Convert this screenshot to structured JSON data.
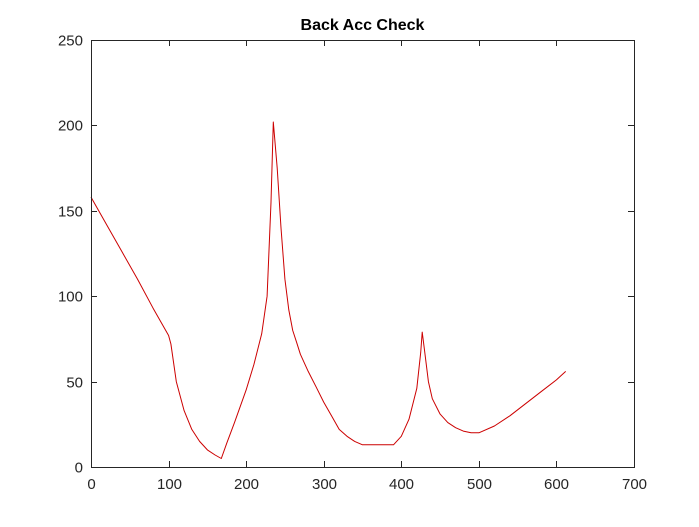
{
  "chart_data": {
    "type": "line",
    "title": "Back Acc Check",
    "xlabel": "",
    "ylabel": "",
    "xlim": [
      0,
      700
    ],
    "ylim": [
      0,
      250
    ],
    "x_ticks": [
      0,
      100,
      200,
      300,
      400,
      500,
      600,
      700
    ],
    "y_ticks": [
      0,
      50,
      100,
      150,
      200,
      250
    ],
    "x_tick_labels": [
      "0",
      "100",
      "200",
      "300",
      "400",
      "500",
      "600",
      "700"
    ],
    "y_tick_labels": [
      "0",
      "50",
      "100",
      "150",
      "200",
      "250"
    ],
    "grid": false,
    "box": true,
    "series": [
      {
        "color": "#cc0000",
        "x": [
          0,
          20,
          40,
          60,
          80,
          100,
          103,
          110,
          120,
          130,
          140,
          150,
          160,
          168,
          175,
          185,
          200,
          210,
          220,
          227,
          232,
          235,
          240,
          245,
          250,
          255,
          260,
          265,
          270,
          280,
          290,
          300,
          310,
          320,
          330,
          340,
          350,
          360,
          370,
          380,
          390,
          400,
          410,
          420,
          425,
          427,
          430,
          435,
          440,
          450,
          460,
          470,
          480,
          490,
          500,
          520,
          540,
          560,
          580,
          600,
          612
        ],
        "y": [
          158,
          142,
          126,
          110,
          93,
          77,
          72,
          50,
          33,
          22,
          15,
          10,
          7,
          5,
          14,
          26,
          45,
          60,
          78,
          100,
          155,
          202,
          175,
          140,
          110,
          92,
          80,
          73,
          66,
          56,
          47,
          38,
          30,
          22,
          18,
          15,
          13,
          13,
          13,
          13,
          13,
          18,
          28,
          46,
          67,
          79,
          68,
          50,
          40,
          31,
          26,
          23,
          21,
          20,
          20,
          24,
          30,
          37,
          44,
          51,
          56
        ]
      }
    ]
  }
}
